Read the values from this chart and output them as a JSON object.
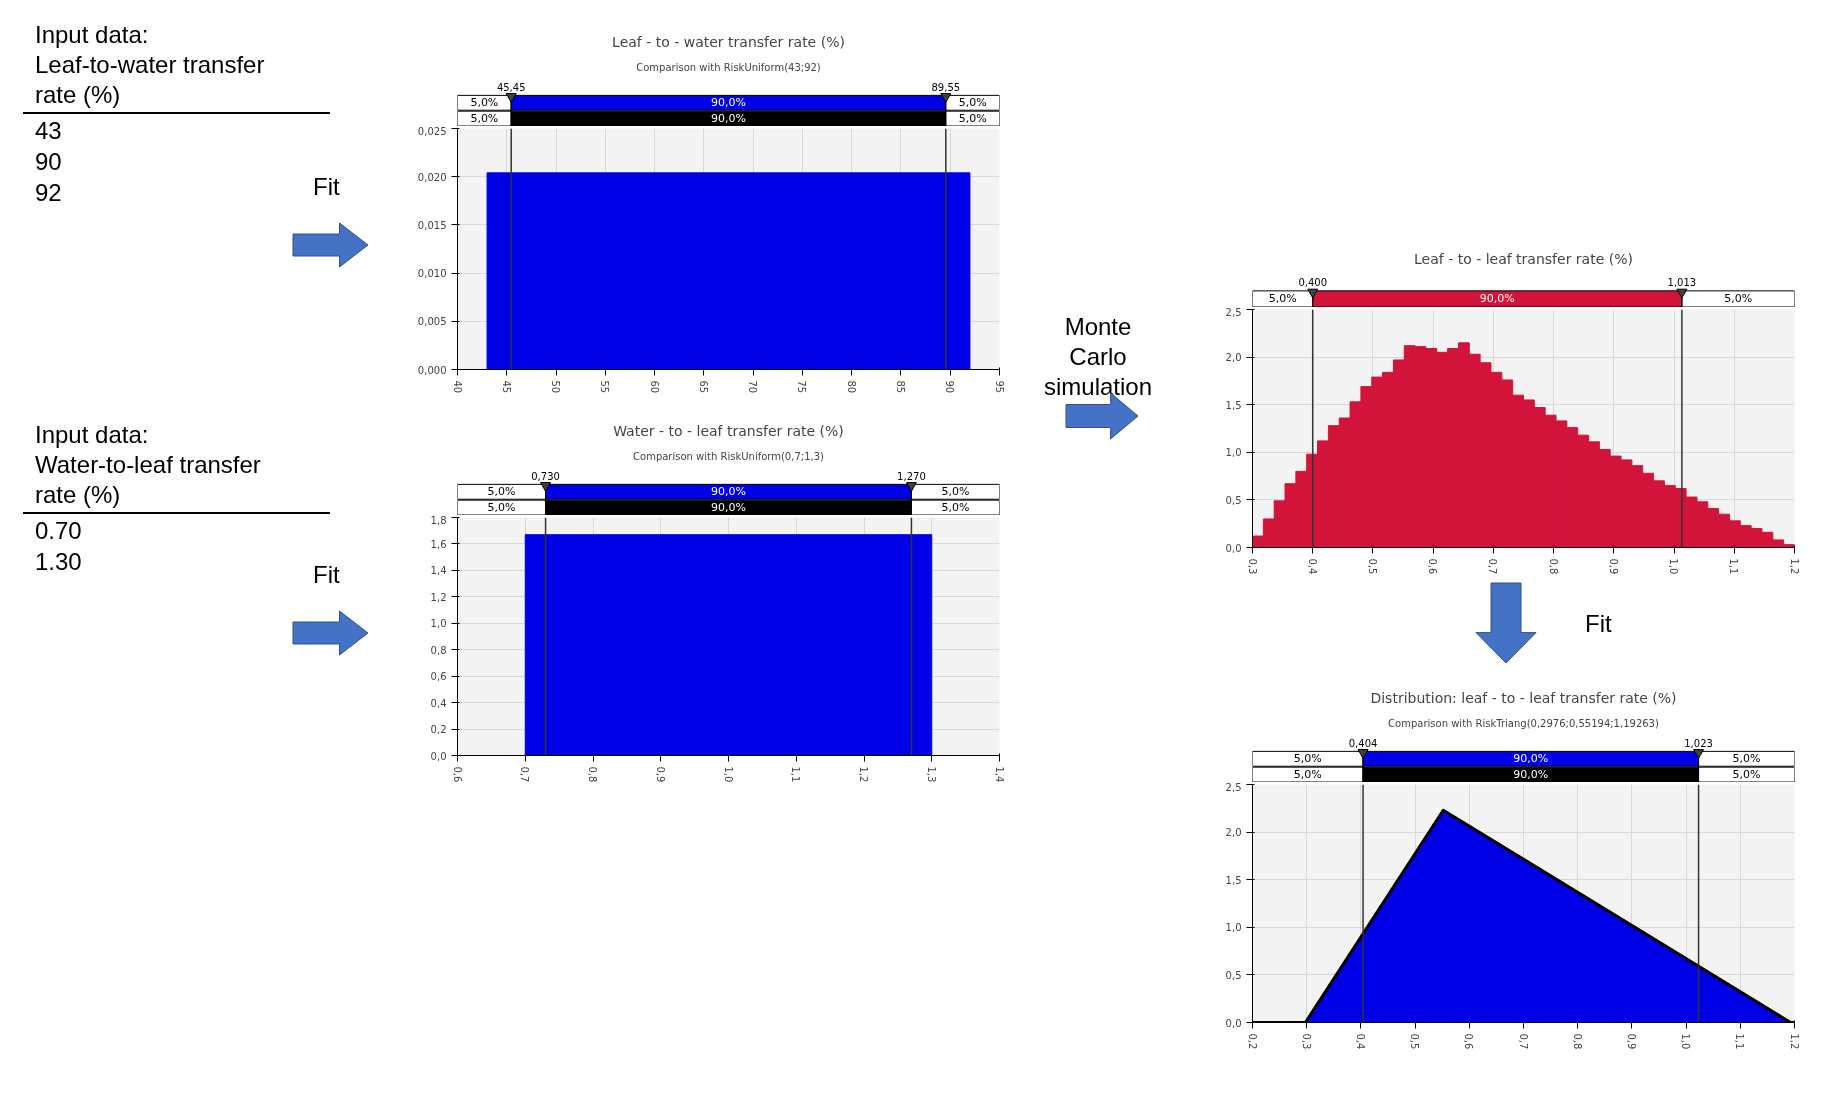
{
  "chart_data": [
    {
      "type": "other",
      "title": "Input data:",
      "subtitle": "Leaf-to-water transfer rate (%)",
      "annotations": [
        "43",
        "90",
        "92",
        "Fit"
      ]
    },
    {
      "type": "histogram",
      "title": "Leaf - to - water transfer rate (%)",
      "subtitle": "Comparison with RiskUniform(43;92)",
      "bins": [
        40,
        43,
        92,
        95
      ],
      "values": [
        0,
        0.0204,
        0
      ],
      "color": "#0000e6",
      "xlim": [
        40,
        95
      ],
      "xticks": [
        40,
        45,
        50,
        55,
        60,
        65,
        70,
        75,
        80,
        85,
        90,
        95
      ],
      "ylim": [
        0,
        0.025
      ],
      "yticks": [
        {
          "value": 0,
          "label": "0,000"
        },
        {
          "value": 0.005,
          "label": "0,005"
        },
        {
          "value": 0.01,
          "label": "0,010"
        },
        {
          "value": 0.015,
          "label": "0,015"
        },
        {
          "value": 0.02,
          "label": "0,020"
        },
        {
          "value": 0.025,
          "label": "0,025"
        }
      ],
      "grid": true,
      "ref_lines": [
        {
          "axis": "x",
          "value": 45.45,
          "label": "45,45"
        },
        {
          "axis": "x",
          "value": 89.55,
          "label": "89,55"
        }
      ],
      "annotations": [
        "5,0%",
        "90,0%",
        "5,0%",
        "5,0%",
        "90,0%",
        "5,0%"
      ]
    },
    {
      "type": "other",
      "title": "Input data:",
      "subtitle": "Water-to-leaf transfer rate (%)",
      "annotations": [
        "0.70",
        "1.30",
        "Fit"
      ]
    },
    {
      "type": "histogram",
      "title": "Water - to - leaf transfer rate (%)",
      "subtitle": "Comparison with RiskUniform(0,7;1,3)",
      "bins": [
        0.6,
        0.7,
        1.3,
        1.4
      ],
      "values": [
        0,
        1.67,
        0
      ],
      "color": "#0000e6",
      "xlim": [
        0.6,
        1.4
      ],
      "xticks": [
        {
          "value": 0.6,
          "label": "0,6"
        },
        {
          "value": 0.7,
          "label": "0,7"
        },
        {
          "value": 0.8,
          "label": "0,8"
        },
        {
          "value": 0.9,
          "label": "0,9"
        },
        {
          "value": 1.0,
          "label": "1,0"
        },
        {
          "value": 1.1,
          "label": "1,1"
        },
        {
          "value": 1.2,
          "label": "1,2"
        },
        {
          "value": 1.3,
          "label": "1,3"
        },
        {
          "value": 1.4,
          "label": "1,4"
        }
      ],
      "ylim": [
        0,
        1.8
      ],
      "yticks": [
        {
          "value": 0,
          "label": "0,0"
        },
        {
          "value": 0.2,
          "label": "0,2"
        },
        {
          "value": 0.4,
          "label": "0,4"
        },
        {
          "value": 0.6,
          "label": "0,6"
        },
        {
          "value": 0.8,
          "label": "0,8"
        },
        {
          "value": 1.0,
          "label": "1,0"
        },
        {
          "value": 1.2,
          "label": "1,2"
        },
        {
          "value": 1.4,
          "label": "1,4"
        },
        {
          "value": 1.6,
          "label": "1,6"
        },
        {
          "value": 1.8,
          "label": "1,8"
        }
      ],
      "grid": true,
      "ref_lines": [
        {
          "axis": "x",
          "value": 0.73,
          "label": "0,730"
        },
        {
          "axis": "x",
          "value": 1.27,
          "label": "1,270"
        }
      ],
      "annotations": [
        "5,0%",
        "90,0%",
        "5,0%",
        "5,0%",
        "90,0%",
        "5,0%"
      ]
    },
    {
      "type": "other",
      "annotations": [
        "Monte Carlo simulation"
      ]
    },
    {
      "type": "histogram",
      "title": "Leaf - to - leaf transfer rate (%)",
      "bins": [
        0.3,
        0.318,
        0.336,
        0.354,
        0.372,
        0.39,
        0.408,
        0.426,
        0.444,
        0.462,
        0.48,
        0.498,
        0.516,
        0.534,
        0.552,
        0.57,
        0.588,
        0.606,
        0.624,
        0.642,
        0.66,
        0.678,
        0.696,
        0.714,
        0.732,
        0.75,
        0.768,
        0.786,
        0.804,
        0.822,
        0.84,
        0.858,
        0.876,
        0.894,
        0.912,
        0.93,
        0.948,
        0.966,
        0.984,
        1.002,
        1.02,
        1.038,
        1.056,
        1.074,
        1.092,
        1.11,
        1.128,
        1.146,
        1.164,
        1.182,
        1.2
      ],
      "values": [
        0.12,
        0.3,
        0.49,
        0.67,
        0.8,
        0.98,
        1.12,
        1.28,
        1.36,
        1.53,
        1.69,
        1.79,
        1.84,
        1.97,
        2.12,
        2.11,
        2.09,
        2.05,
        2.09,
        2.15,
        2.03,
        1.94,
        1.84,
        1.76,
        1.6,
        1.55,
        1.47,
        1.39,
        1.33,
        1.26,
        1.18,
        1.11,
        1.03,
        0.96,
        0.92,
        0.86,
        0.78,
        0.7,
        0.65,
        0.62,
        0.53,
        0.48,
        0.41,
        0.35,
        0.28,
        0.23,
        0.2,
        0.16,
        0.08,
        0.03
      ],
      "color": "#d2143a",
      "xlim": [
        0.3,
        1.2
      ],
      "xticks": [
        {
          "value": 0.3,
          "label": "0,3"
        },
        {
          "value": 0.4,
          "label": "0,4"
        },
        {
          "value": 0.5,
          "label": "0,5"
        },
        {
          "value": 0.6,
          "label": "0,6"
        },
        {
          "value": 0.7,
          "label": "0,7"
        },
        {
          "value": 0.8,
          "label": "0,8"
        },
        {
          "value": 0.9,
          "label": "0,9"
        },
        {
          "value": 1.0,
          "label": "1,0"
        },
        {
          "value": 1.1,
          "label": "1,1"
        },
        {
          "value": 1.2,
          "label": "1,2"
        }
      ],
      "ylim": [
        0,
        2.5
      ],
      "yticks": [
        {
          "value": 0,
          "label": "0,0"
        },
        {
          "value": 0.5,
          "label": "0,5"
        },
        {
          "value": 1.0,
          "label": "1,0"
        },
        {
          "value": 1.5,
          "label": "1,5"
        },
        {
          "value": 2.0,
          "label": "2,0"
        },
        {
          "value": 2.5,
          "label": "2,5"
        }
      ],
      "grid": true,
      "ref_lines": [
        {
          "axis": "x",
          "value": 0.4,
          "label": "0,400"
        },
        {
          "axis": "x",
          "value": 1.013,
          "label": "1,013"
        }
      ],
      "annotations": [
        "5,0%",
        "90,0%",
        "5,0%"
      ]
    },
    {
      "type": "other",
      "annotations": [
        "Fit"
      ]
    },
    {
      "type": "area",
      "title": "Distribution: leaf - to - leaf transfer rate (%)",
      "subtitle": "Comparison with RiskTriang(0,2976;0,55194;1,19263)",
      "x": [
        0.2,
        0.2976,
        0.55194,
        1.19263,
        1.2
      ],
      "values": [
        0,
        0,
        2.23,
        0,
        0
      ],
      "color": "#0000e6",
      "xlim": [
        0.2,
        1.2
      ],
      "xticks": [
        {
          "value": 0.2,
          "label": "0,2"
        },
        {
          "value": 0.3,
          "label": "0,3"
        },
        {
          "value": 0.4,
          "label": "0,4"
        },
        {
          "value": 0.5,
          "label": "0,5"
        },
        {
          "value": 0.6,
          "label": "0,6"
        },
        {
          "value": 0.7,
          "label": "0,7"
        },
        {
          "value": 0.8,
          "label": "0,8"
        },
        {
          "value": 0.9,
          "label": "0,9"
        },
        {
          "value": 1.0,
          "label": "1,0"
        },
        {
          "value": 1.1,
          "label": "1,1"
        },
        {
          "value": 1.2,
          "label": "1,2"
        }
      ],
      "ylim": [
        0,
        2.5
      ],
      "yticks": [
        {
          "value": 0,
          "label": "0,0"
        },
        {
          "value": 0.5,
          "label": "0,5"
        },
        {
          "value": 1.0,
          "label": "1,0"
        },
        {
          "value": 1.5,
          "label": "1,5"
        },
        {
          "value": 2.0,
          "label": "2,0"
        },
        {
          "value": 2.5,
          "label": "2,5"
        }
      ],
      "grid": true,
      "ref_lines": [
        {
          "axis": "x",
          "value": 0.404,
          "label": "0,404"
        },
        {
          "axis": "x",
          "value": 1.023,
          "label": "1,023"
        }
      ],
      "annotations": [
        "5,0%",
        "90,0%",
        "5,0%",
        "5,0%",
        "90,0%",
        "5,0%"
      ]
    }
  ]
}
